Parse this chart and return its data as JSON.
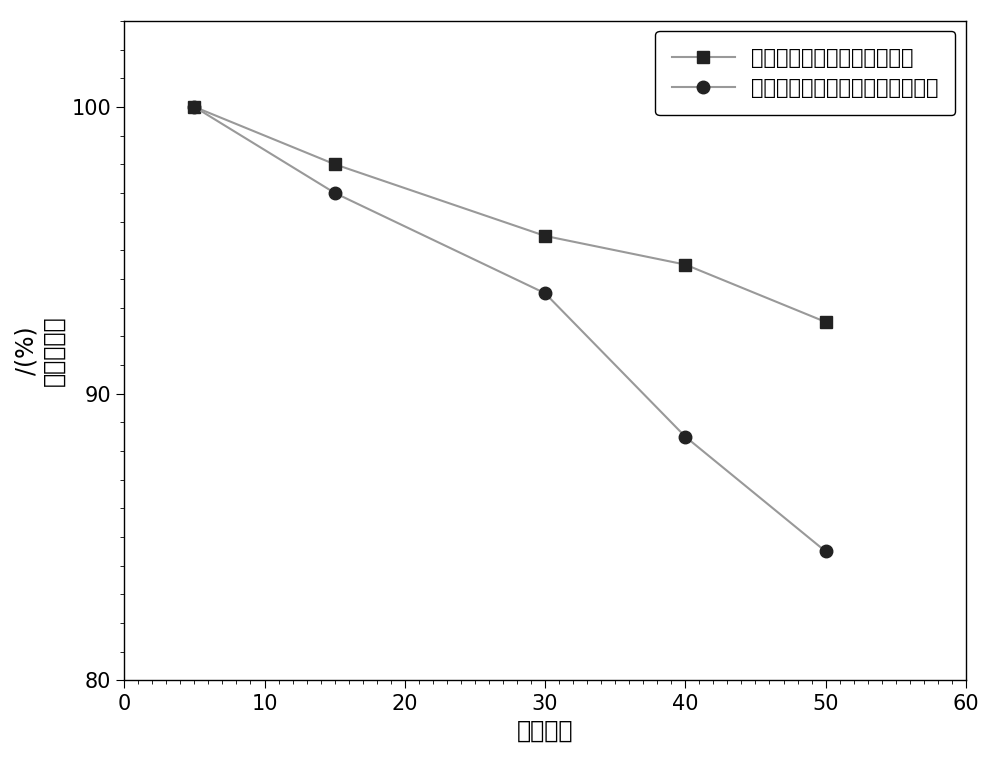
{
  "series1_label": "复合锂离子电池三元正极材料",
  "series2_label": "未包覆的锂离子电池三元正极材料",
  "series1_x": [
    5,
    15,
    30,
    40,
    50
  ],
  "series1_y": [
    100.0,
    98.0,
    95.5,
    94.5,
    92.5
  ],
  "series2_x": [
    5,
    15,
    30,
    40,
    50
  ],
  "series2_y": [
    100.0,
    97.0,
    93.5,
    88.5,
    84.5
  ],
  "xlabel": "循环次数",
  "ylabel_line1": "容量保持率",
  "ylabel_line2": "/(%)",
  "xlim": [
    0,
    60
  ],
  "ylim": [
    80,
    103
  ],
  "xticks": [
    0,
    10,
    20,
    30,
    40,
    50,
    60
  ],
  "yticks": [
    80,
    90,
    100
  ],
  "line_color": "#999999",
  "marker1": "s",
  "marker2": "o",
  "marker_color": "#222222",
  "marker_size": 9,
  "linewidth": 1.5,
  "background_color": "#ffffff",
  "legend_fontsize": 15,
  "axis_fontsize": 17,
  "tick_fontsize": 15
}
